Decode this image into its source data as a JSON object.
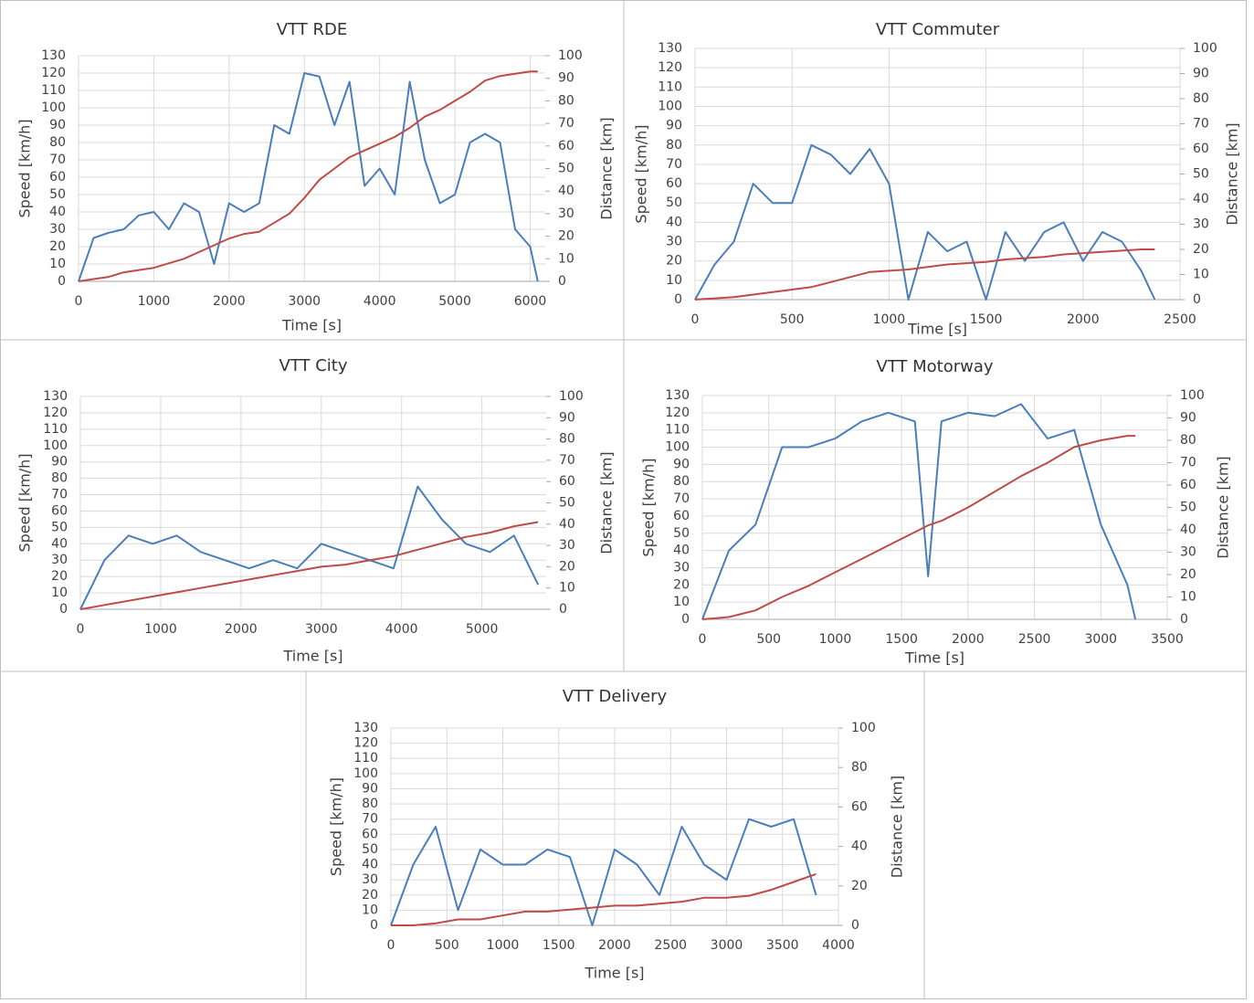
{
  "chart_data": [
    {
      "type": "line",
      "title": "VTT RDE",
      "x_label": "Time [s]",
      "y_label": "Speed [km/h]",
      "y2_label": "Distance [km]",
      "grid": true,
      "xlim": [
        0,
        6200
      ],
      "xticks": [
        0,
        1000,
        2000,
        3000,
        4000,
        5000,
        6000
      ],
      "ylim": [
        0,
        130
      ],
      "yticks": [
        0,
        10,
        20,
        30,
        40,
        50,
        60,
        70,
        80,
        90,
        100,
        110,
        120,
        130
      ],
      "y2lim": [
        0,
        100
      ],
      "y2ticks": [
        0,
        10,
        20,
        30,
        40,
        50,
        60,
        70,
        80,
        90,
        100
      ],
      "x": [
        0,
        200,
        400,
        600,
        800,
        1000,
        1200,
        1400,
        1600,
        1800,
        2000,
        2200,
        2400,
        2600,
        2800,
        3000,
        3200,
        3400,
        3600,
        3800,
        4000,
        4200,
        4400,
        4600,
        4800,
        5000,
        5200,
        5400,
        5600,
        5800,
        6000,
        6100
      ],
      "series": [
        {
          "color": "#4a7ebb",
          "values": [
            0,
            25,
            28,
            30,
            38,
            40,
            30,
            45,
            40,
            10,
            45,
            40,
            45,
            90,
            85,
            120,
            118,
            90,
            115,
            55,
            65,
            50,
            115,
            70,
            45,
            50,
            80,
            85,
            80,
            30,
            20,
            0
          ]
        },
        {
          "color": "#be4b48",
          "axis": "y2",
          "values": [
            0,
            1,
            2,
            4,
            5,
            6,
            8,
            10,
            13,
            16,
            19,
            21,
            22,
            26,
            30,
            37,
            45,
            50,
            55,
            58,
            61,
            64,
            68,
            73,
            76,
            80,
            84,
            89,
            91,
            92,
            93,
            93
          ]
        }
      ]
    },
    {
      "type": "line",
      "title": "VTT Commuter",
      "x_label": "Time [s]",
      "y_label": "Speed [km/h]",
      "y2_label": "Distance [km]",
      "grid": true,
      "xlim": [
        0,
        2500
      ],
      "xticks": [
        0,
        500,
        1000,
        1500,
        2000,
        2500
      ],
      "ylim": [
        0,
        130
      ],
      "yticks": [
        0,
        10,
        20,
        30,
        40,
        50,
        60,
        70,
        80,
        90,
        100,
        110,
        120,
        130
      ],
      "y2lim": [
        0,
        100
      ],
      "y2ticks": [
        0,
        10,
        20,
        30,
        40,
        50,
        60,
        70,
        80,
        90,
        100
      ],
      "x": [
        0,
        100,
        200,
        300,
        400,
        500,
        600,
        700,
        800,
        900,
        1000,
        1100,
        1200,
        1300,
        1400,
        1500,
        1600,
        1700,
        1800,
        1900,
        2000,
        2100,
        2200,
        2300,
        2370
      ],
      "series": [
        {
          "color": "#4a7ebb",
          "values": [
            0,
            18,
            30,
            60,
            50,
            50,
            80,
            75,
            65,
            78,
            60,
            0,
            35,
            25,
            30,
            0,
            35,
            20,
            35,
            40,
            20,
            35,
            30,
            15,
            0
          ]
        },
        {
          "color": "#be4b48",
          "axis": "y2",
          "values": [
            0,
            0.5,
            1,
            2,
            3,
            4,
            5,
            7,
            9,
            11,
            11.5,
            12,
            13,
            14,
            14.5,
            15,
            16,
            16.5,
            17,
            18,
            18.5,
            19,
            19.5,
            20,
            20
          ]
        }
      ]
    },
    {
      "type": "line",
      "title": "VTT City",
      "x_label": "Time [s]",
      "y_label": "Speed [km/h]",
      "y2_label": "Distance [km]",
      "grid": true,
      "xlim": [
        0,
        5800
      ],
      "xticks": [
        0,
        1000,
        2000,
        3000,
        4000,
        5000
      ],
      "ylim": [
        0,
        130
      ],
      "yticks": [
        0,
        10,
        20,
        30,
        40,
        50,
        60,
        70,
        80,
        90,
        100,
        110,
        120,
        130
      ],
      "y2lim": [
        0,
        100
      ],
      "y2ticks": [
        0,
        10,
        20,
        30,
        40,
        50,
        60,
        70,
        80,
        90,
        100
      ],
      "x": [
        0,
        300,
        600,
        900,
        1200,
        1500,
        1800,
        2100,
        2400,
        2700,
        3000,
        3300,
        3600,
        3900,
        4200,
        4500,
        4800,
        5100,
        5400,
        5700
      ],
      "series": [
        {
          "color": "#4a7ebb",
          "values": [
            0,
            30,
            45,
            40,
            45,
            35,
            30,
            25,
            30,
            25,
            40,
            35,
            30,
            25,
            75,
            55,
            40,
            35,
            45,
            15
          ]
        },
        {
          "color": "#be4b48",
          "axis": "y2",
          "values": [
            0,
            2,
            4,
            6,
            8,
            10,
            12,
            14,
            16,
            18,
            20,
            21,
            23,
            25,
            28,
            31,
            34,
            36,
            39,
            41
          ]
        }
      ]
    },
    {
      "type": "line",
      "title": "VTT Motorway",
      "x_label": "Time [s]",
      "y_label": "Speed [km/h]",
      "y2_label": "Distance [km]",
      "grid": true,
      "xlim": [
        0,
        3500
      ],
      "xticks": [
        0,
        500,
        1000,
        1500,
        2000,
        2500,
        3000,
        3500
      ],
      "ylim": [
        0,
        130
      ],
      "yticks": [
        0,
        10,
        20,
        30,
        40,
        50,
        60,
        70,
        80,
        90,
        100,
        110,
        120,
        130
      ],
      "y2lim": [
        0,
        100
      ],
      "y2ticks": [
        0,
        10,
        20,
        30,
        40,
        50,
        60,
        70,
        80,
        90,
        100
      ],
      "x": [
        0,
        200,
        400,
        600,
        800,
        1000,
        1200,
        1400,
        1600,
        1700,
        1800,
        2000,
        2200,
        2400,
        2600,
        2800,
        3000,
        3200,
        3260
      ],
      "series": [
        {
          "color": "#4a7ebb",
          "values": [
            0,
            40,
            55,
            100,
            100,
            105,
            115,
            120,
            115,
            25,
            115,
            120,
            118,
            125,
            105,
            110,
            55,
            20,
            0
          ]
        },
        {
          "color": "#be4b48",
          "axis": "y2",
          "values": [
            0,
            1,
            4,
            10,
            15,
            21,
            27,
            33,
            39,
            42,
            44,
            50,
            57,
            64,
            70,
            77,
            80,
            82,
            82
          ]
        }
      ]
    },
    {
      "type": "line",
      "title": "VTT Delivery",
      "x_label": "Time [s]",
      "y_label": "Speed [km/h]",
      "y2_label": "Distance [km]",
      "grid": true,
      "xlim": [
        0,
        4000
      ],
      "xticks": [
        0,
        500,
        1000,
        1500,
        2000,
        2500,
        3000,
        3500,
        4000
      ],
      "ylim": [
        0,
        130
      ],
      "yticks": [
        0,
        10,
        20,
        30,
        40,
        50,
        60,
        70,
        80,
        90,
        100,
        110,
        120,
        130
      ],
      "y2lim": [
        0,
        100
      ],
      "y2ticks": [
        0,
        20,
        40,
        60,
        80,
        100
      ],
      "x": [
        0,
        200,
        400,
        600,
        800,
        1000,
        1200,
        1400,
        1600,
        1800,
        2000,
        2200,
        2400,
        2600,
        2800,
        3000,
        3200,
        3400,
        3600,
        3800
      ],
      "series": [
        {
          "color": "#4a7ebb",
          "values": [
            0,
            40,
            65,
            10,
            50,
            40,
            40,
            50,
            45,
            0,
            50,
            40,
            20,
            65,
            40,
            30,
            70,
            65,
            70,
            20
          ]
        },
        {
          "color": "#be4b48",
          "axis": "y2",
          "values": [
            0,
            0,
            1,
            3,
            3,
            5,
            7,
            7,
            8,
            9,
            10,
            10,
            11,
            12,
            14,
            14,
            15,
            18,
            22,
            26
          ]
        }
      ]
    }
  ]
}
